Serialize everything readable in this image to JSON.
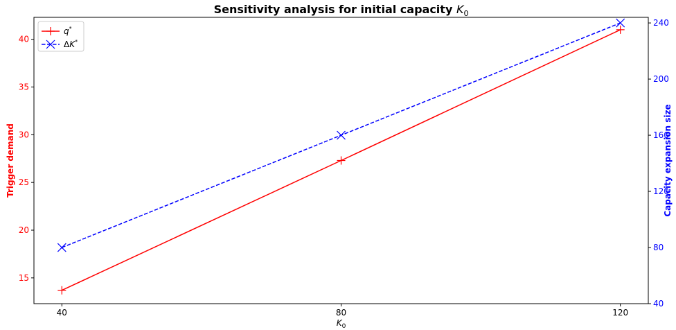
{
  "chart_data": {
    "type": "line",
    "title": "Sensitivity analysis for initial capacity",
    "title_symbol": "K",
    "title_subscript": "0",
    "xlabel_symbol": "K",
    "xlabel_subscript": "0",
    "x": [
      40,
      80,
      120
    ],
    "xlim": [
      36,
      124
    ],
    "x_ticks": [
      40,
      80,
      120
    ],
    "y_left": {
      "label": "Trigger demand",
      "color": "#ff0000",
      "lim": [
        12.3,
        42.3
      ],
      "ticks": [
        15,
        20,
        25,
        30,
        35,
        40
      ]
    },
    "y_right": {
      "label": "Capacity expansion size",
      "color": "#0000ff",
      "lim": [
        40,
        244
      ],
      "ticks": [
        40,
        80,
        120,
        160,
        200,
        240
      ]
    },
    "series": [
      {
        "name": "q",
        "name_sup": "*",
        "axis": "left",
        "color": "#ff0000",
        "line_style": "solid",
        "marker": "+",
        "values": [
          13.7,
          27.3,
          41.0
        ]
      },
      {
        "name": "ΔK",
        "name_sup": "*",
        "axis": "right",
        "color": "#0000ff",
        "line_style": "dashed",
        "marker": "x",
        "values": [
          80,
          160,
          240
        ]
      }
    ],
    "legend_position": "top-left",
    "grid": false
  }
}
